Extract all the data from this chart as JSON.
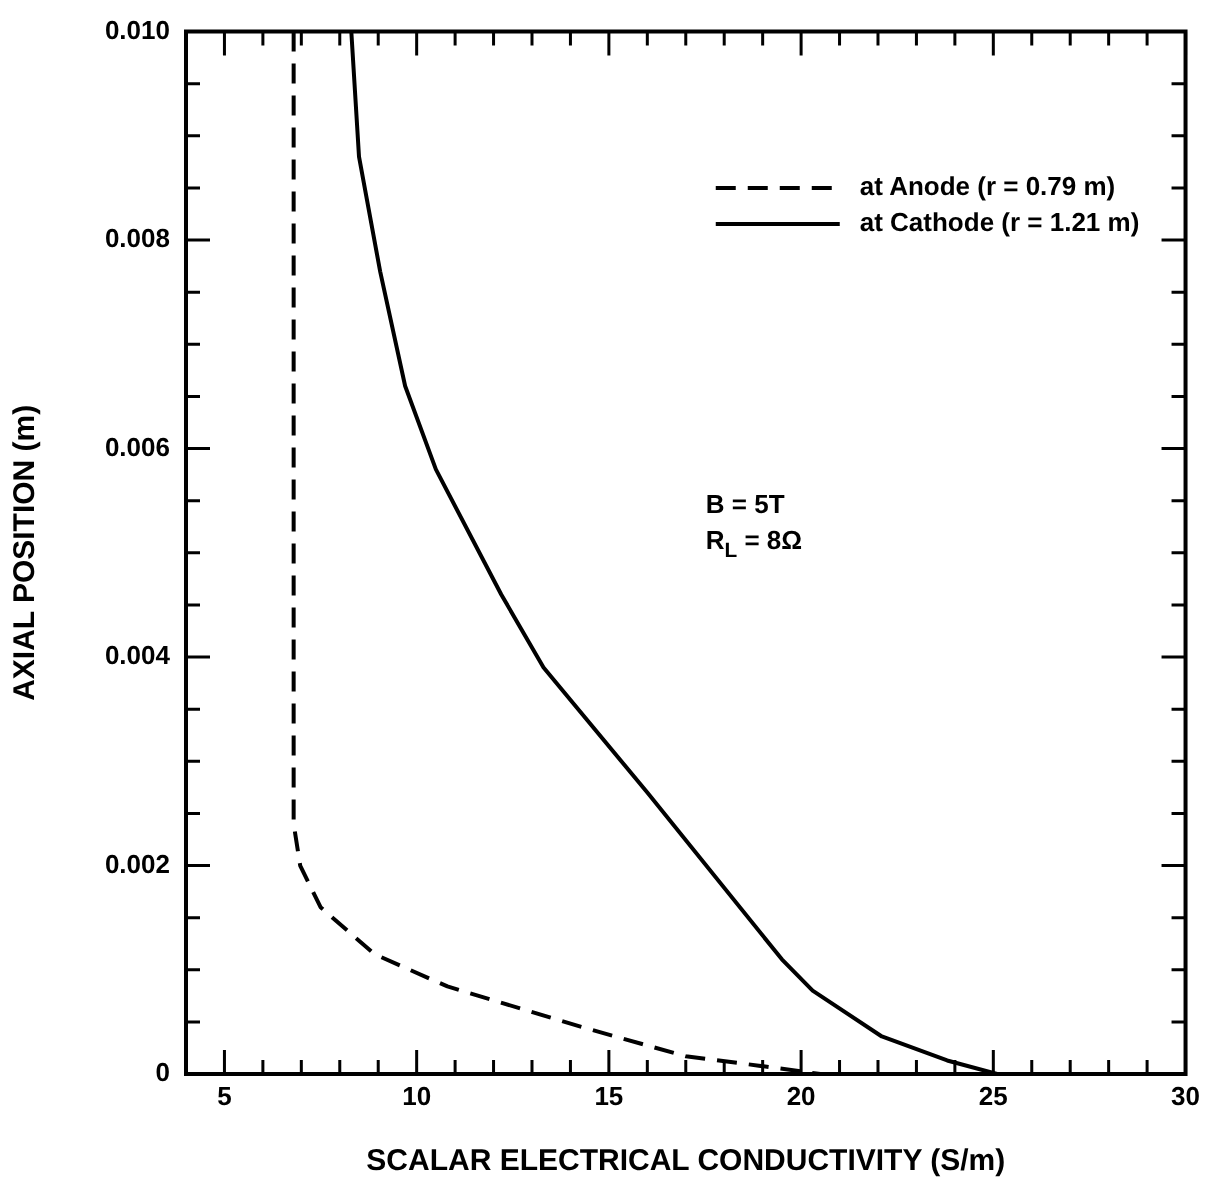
{
  "chart_data": {
    "type": "line",
    "xlabel": "SCALAR ELECTRICAL CONDUCTIVITY (S/m)",
    "ylabel": "AXIAL POSITION (m)",
    "xlim": [
      4,
      30
    ],
    "xticks": [
      5,
      10,
      15,
      20,
      25,
      30
    ],
    "ylim": [
      0,
      0.01
    ],
    "yticks": [
      0,
      0.002,
      0.004,
      0.006,
      0.008,
      {
        "value": 0.01,
        "label": "0.010"
      }
    ],
    "grid": false,
    "legend": "top right",
    "marker": "none",
    "series": [
      {
        "name": "at Anode (r = 0.79 m)",
        "color": "#000000",
        "line_style": "dashed",
        "x": [
          6.8,
          6.8,
          6.97,
          7.5,
          8.9,
          10.8,
          14.3,
          17.0,
          18.9,
          20.5
        ],
        "values": [
          0.01,
          0.0024,
          0.002,
          0.0016,
          0.00115,
          0.00084,
          0.00045,
          0.00017,
          8e-05,
          0
        ]
      },
      {
        "name": "at Cathode (r = 1.21 m)",
        "color": "#000000",
        "line_style": "solid",
        "x": [
          8.3,
          8.5,
          9.05,
          9.7,
          10.5,
          12.2,
          13.3,
          16.0,
          19.5,
          20.3,
          22.1,
          23.8,
          25.1
        ],
        "values": [
          0.01,
          0.0088,
          0.0077,
          0.0066,
          0.0058,
          0.0046,
          0.0039,
          0.0027,
          0.0011,
          0.0008,
          0.00036,
          0.00013,
          0
        ]
      }
    ],
    "annotations": [
      "B = 5T",
      "R$_{L}$ = 8Ω"
    ]
  }
}
